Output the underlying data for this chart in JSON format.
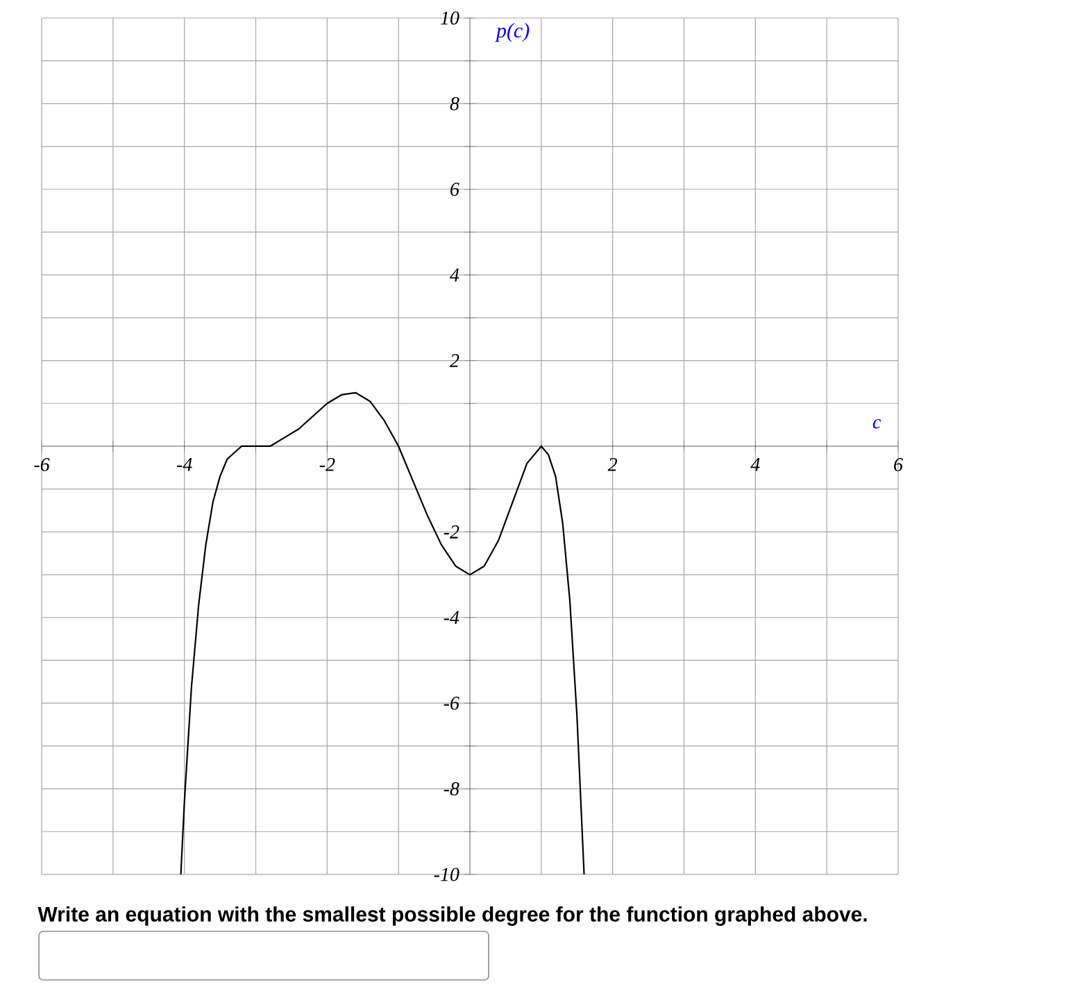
{
  "chart_data": {
    "type": "line",
    "xlabel": "c",
    "ylabel": "p(c)",
    "annotations": [
      "Write an equation with the smallest possible degree for the function graphed above."
    ],
    "xlim": [
      -6,
      6
    ],
    "ylim": [
      -10,
      10
    ],
    "xticks": [
      -6,
      {
        "value": -5,
        "label": null
      },
      -4,
      {
        "value": -3,
        "label": null
      },
      -2,
      {
        "value": -1,
        "label": null
      },
      {
        "value": 1,
        "label": null
      },
      2,
      {
        "value": 3,
        "label": null
      },
      4,
      {
        "value": 5,
        "label": null
      },
      6
    ],
    "yticks": [
      -10,
      {
        "value": -9,
        "label": null
      },
      -8,
      {
        "value": -7,
        "label": null
      },
      -6,
      {
        "value": -5,
        "label": null
      },
      -4,
      {
        "value": -3,
        "label": null
      },
      -2,
      {
        "value": -1,
        "label": null
      },
      {
        "value": 1,
        "label": null
      },
      2,
      {
        "value": 3,
        "label": null
      },
      4,
      {
        "value": 5,
        "label": null
      },
      6,
      {
        "value": 7,
        "label": null
      },
      8,
      {
        "value": 9,
        "label": null
      },
      10
    ],
    "grid": true,
    "marker": "none",
    "line_style": "solid",
    "series": [
      {
        "color": "#000000",
        "x": [
          -4.05,
          -4,
          -3.9,
          -3.8,
          -3.7,
          -3.6,
          -3.5,
          -3.4,
          -3.2,
          -3,
          -2.8,
          -2.6,
          -2.4,
          -2.2,
          -2,
          -1.8,
          -1.6,
          -1.4,
          -1.2,
          -1,
          -0.8,
          -0.6,
          -0.4,
          -0.2,
          0,
          0.2,
          0.4,
          0.6,
          0.8,
          1,
          1.1,
          1.2,
          1.3,
          1.4,
          1.5,
          1.6
        ],
        "values": [
          -10,
          -8.3,
          -5.6,
          -3.7,
          -2.3,
          -1.3,
          -0.7,
          -0.3,
          0,
          0,
          0,
          0.2,
          0.4,
          0.7,
          1,
          1.2,
          1.25,
          1.05,
          0.6,
          0,
          -0.8,
          -1.6,
          -2.3,
          -2.8,
          -3,
          -2.8,
          -2.2,
          -1.3,
          -0.4,
          0,
          -0.2,
          -0.7,
          -1.8,
          -3.6,
          -6.3,
          -10
        ]
      }
    ]
  }
}
